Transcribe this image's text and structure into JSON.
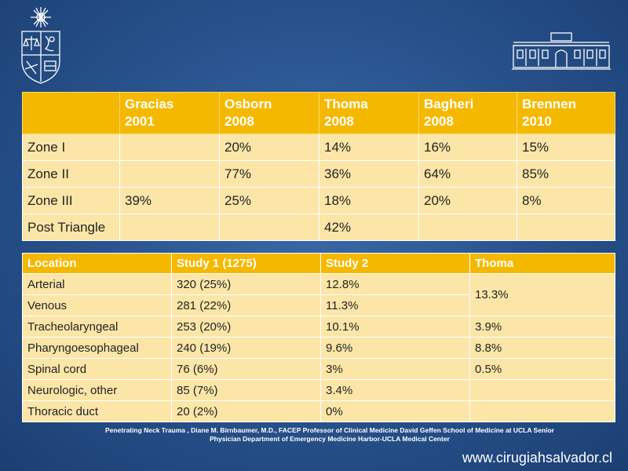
{
  "table1": {
    "headers": [
      {
        "line1": "",
        "line2": ""
      },
      {
        "line1": "Gracias",
        "line2": "2001"
      },
      {
        "line1": "Osborn",
        "line2": "2008"
      },
      {
        "line1": "Thoma",
        "line2": "2008"
      },
      {
        "line1": "Bagheri",
        "line2": "2008"
      },
      {
        "line1": "Brennen",
        "line2": "2010"
      }
    ],
    "rows": [
      [
        "Zone I",
        "",
        "20%",
        "14%",
        "16%",
        "15%"
      ],
      [
        "Zone II",
        "",
        "77%",
        "36%",
        "64%",
        "85%"
      ],
      [
        "Zone III",
        "39%",
        "25%",
        "18%",
        "20%",
        "8%"
      ],
      [
        "Post Triangle",
        "",
        "",
        "42%",
        "",
        ""
      ]
    ]
  },
  "table2": {
    "headers": [
      "Location",
      "Study 1 (1275)",
      "Study 2",
      "Thoma"
    ],
    "rows": [
      [
        "Arterial",
        "320  (25%)",
        "12.8%",
        "13.3%"
      ],
      [
        "Venous",
        "281 (22%)",
        "11.3%",
        ""
      ],
      [
        "Tracheolaryngeal",
        "253 (20%)",
        "10.1%",
        "3.9%"
      ],
      [
        "Pharyngoesophageal",
        "240 (19%)",
        "9.6%",
        "8.8%"
      ],
      [
        "Spinal cord",
        "76 (6%)",
        "3%",
        "0.5%"
      ],
      [
        "Neurologic, other",
        "85 (7%)",
        "3.4%",
        ""
      ],
      [
        "Thoracic duct",
        "20 (2%)",
        "0%",
        ""
      ]
    ]
  },
  "footnote": {
    "line1": "Penetrating Neck Trauma ,   Diane M. Birnbaumer, M.D., FACEP Professor of Clinical Medicine  David Geffen School of Medicine at UCLA  Senior",
    "line2": "Physician  Department of Emergency Medicine Harbor-UCLA Medical Center"
  },
  "website": "www.cirugiahsalvador.cl",
  "colors": {
    "background": "#2a5590",
    "header": "#f5b800",
    "cell": "#fbe6a8",
    "text_dark": "#222222",
    "text_light": "#ffffff"
  },
  "icons": {
    "left_logo": "university-crest-icon",
    "right_logo": "hospital-building-icon"
  }
}
